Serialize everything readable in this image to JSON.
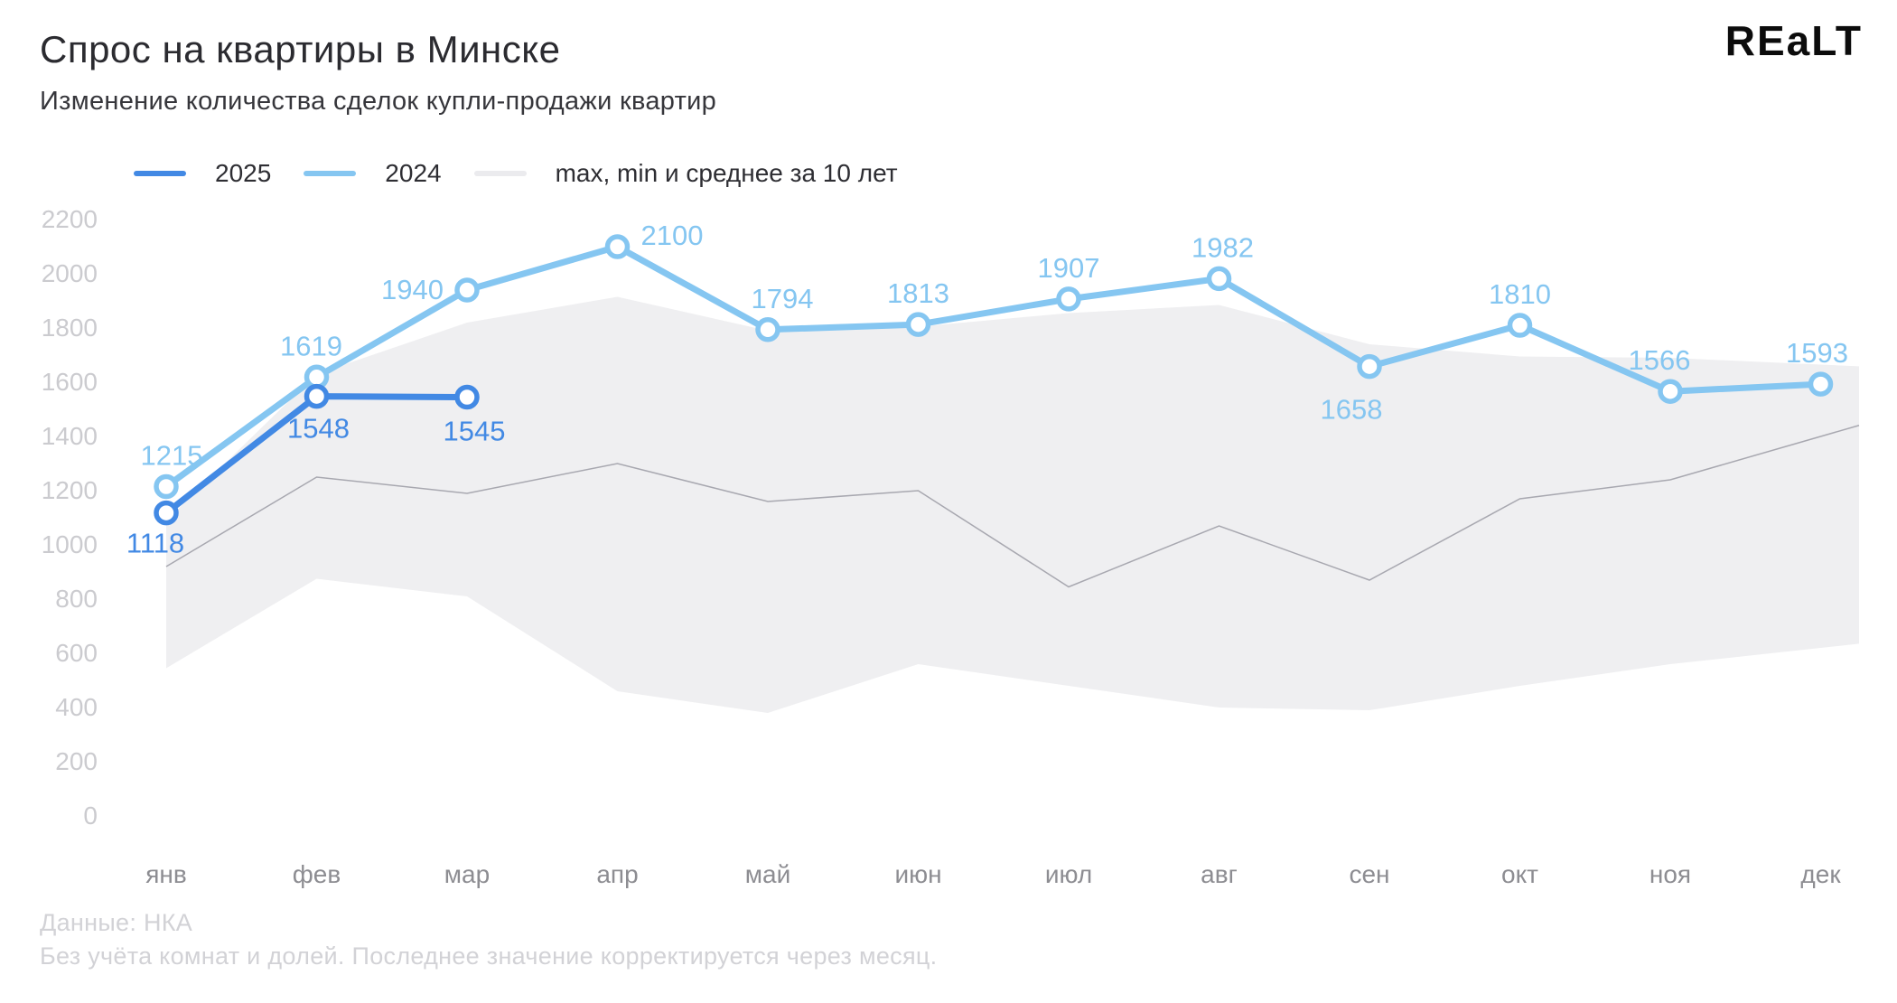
{
  "header": {
    "title": "Спрос на квартиры в Минске",
    "subtitle": "Изменение количества сделок купли-продажи квартир",
    "logo": "REaLT"
  },
  "footer": {
    "source": "Данные: НКА",
    "note": "Без учёта комнат и долей. Последнее значение корректируется через месяц."
  },
  "chart_data": {
    "type": "line",
    "title": "Спрос на квартиры в Минске",
    "categories": [
      "янв",
      "фев",
      "мар",
      "апр",
      "май",
      "июн",
      "июл",
      "авг",
      "сен",
      "окт",
      "ноя",
      "дек"
    ],
    "series": [
      {
        "name": "2025",
        "color": "#4289e4",
        "values": [
          1118,
          1548,
          1545
        ]
      },
      {
        "name": "2024",
        "color": "#85c6f1",
        "values": [
          1215,
          1619,
          1940,
          2100,
          1794,
          1813,
          1907,
          1982,
          1658,
          1810,
          1566,
          1593
        ]
      }
    ],
    "band_10yr": {
      "label": "max, min и среднее за 10 лет",
      "fill": "#efeff1",
      "line_color": "#a8a8b0",
      "legend_swatch": "#ebebee",
      "max": [
        1090,
        1630,
        1820,
        1915,
        1790,
        1805,
        1855,
        1885,
        1740,
        1695,
        1690,
        1665
      ],
      "min": [
        545,
        875,
        810,
        460,
        380,
        560,
        480,
        400,
        390,
        480,
        560,
        620
      ],
      "avg": [
        920,
        1250,
        1190,
        1300,
        1160,
        1200,
        845,
        1070,
        870,
        1170,
        1240,
        1400
      ]
    },
    "ylim": [
      0,
      2200
    ],
    "ytick_step": 200,
    "grid": false,
    "legend_position": "top-left",
    "axis_style": {
      "ytick_color": "#cbcbcf",
      "xtick_color": "#8d8d92"
    }
  }
}
